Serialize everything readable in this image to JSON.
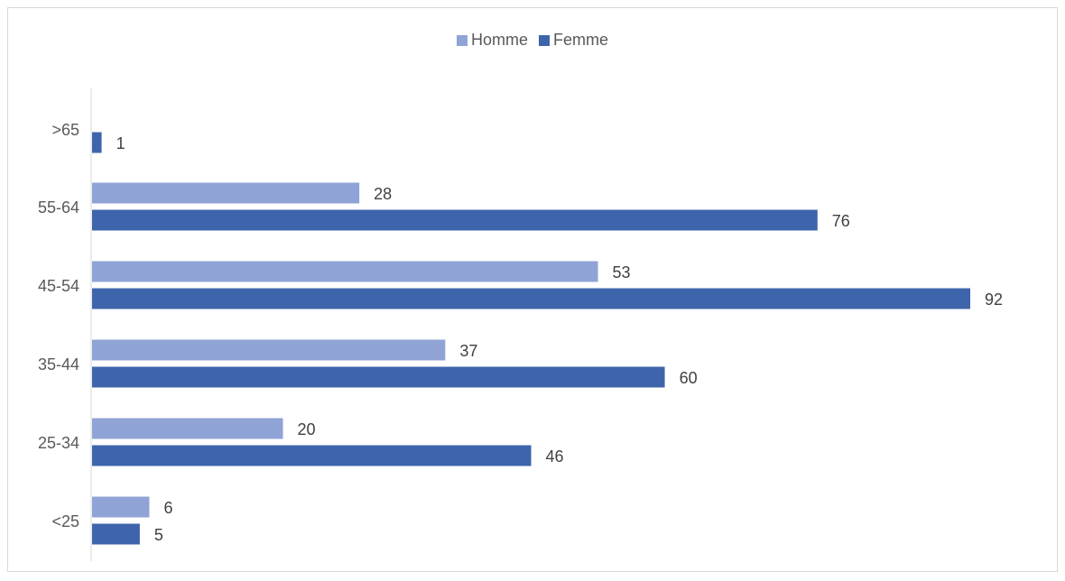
{
  "chart_data": {
    "type": "bar",
    "orientation": "horizontal",
    "categories": [
      "<25",
      "25-34",
      "35-44",
      "45-54",
      "55-64",
      ">65"
    ],
    "series": [
      {
        "name": "Homme",
        "color": "#8FA3D6",
        "values": [
          6,
          20,
          37,
          53,
          28,
          null
        ]
      },
      {
        "name": "Femme",
        "color": "#3E64AC",
        "values": [
          5,
          46,
          60,
          92,
          76,
          1
        ]
      }
    ],
    "legend": "top-center",
    "grid": false,
    "xlim": [
      0,
      92
    ]
  }
}
